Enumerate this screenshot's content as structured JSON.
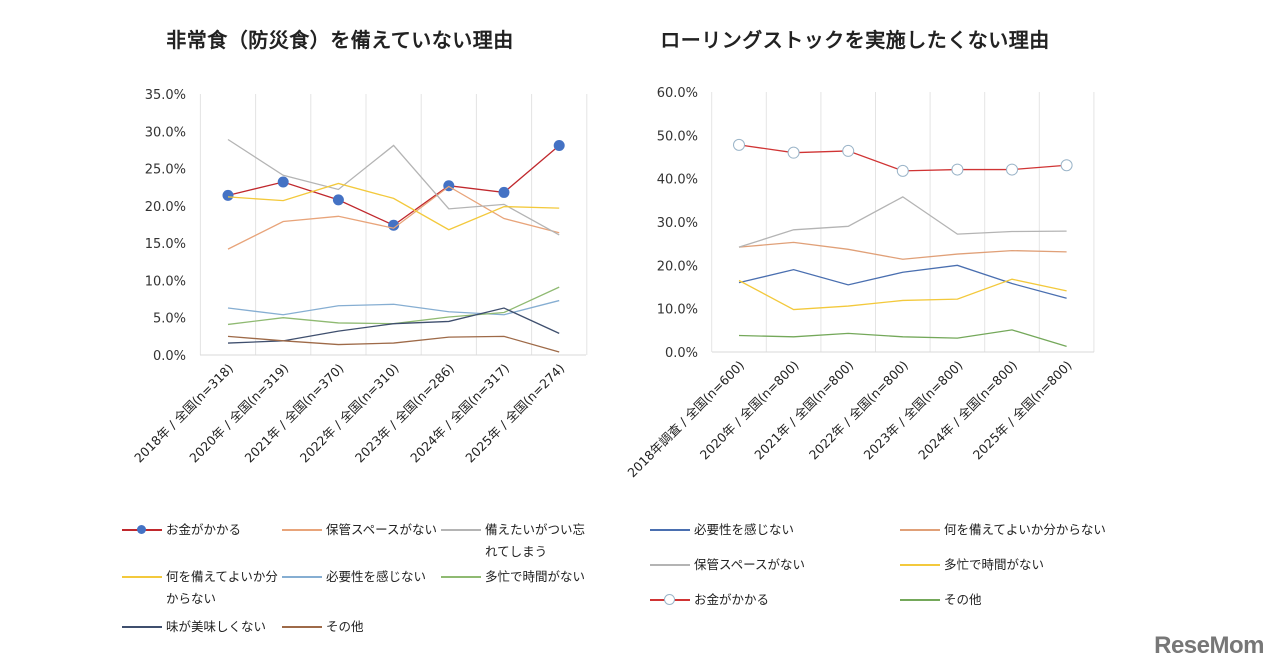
{
  "chart_data": [
    {
      "type": "line",
      "title": "非常食（防災食）を備えていない理由",
      "categories": [
        "2018年 / 全国(n=318)",
        "2020年 / 全国(n=319)",
        "2021年 / 全国(n=370)",
        "2022年 / 全国(n=310)",
        "2023年 / 全国(n=286)",
        "2024年 / 全国(n=317)",
        "2025年 / 全国(n=274)"
      ],
      "ylim": [
        0,
        35
      ],
      "yticks": [
        "0.0%",
        "5.0%",
        "10.0%",
        "15.0%",
        "20.0%",
        "25.0%",
        "30.0%",
        "35.0%"
      ],
      "grid": "vertical",
      "legend": "bottom",
      "series": [
        {
          "name": "お金がかかる",
          "color": "#c0282d",
          "marker": "filled-circle",
          "marker_color": "#4472c4",
          "values": [
            21.4,
            23.2,
            20.8,
            17.4,
            22.7,
            21.8,
            28.1
          ]
        },
        {
          "name": "保管スペースがない",
          "color": "#e8a47a",
          "values": [
            14.2,
            17.9,
            18.6,
            17.0,
            22.6,
            18.3,
            16.4
          ]
        },
        {
          "name": "備えたいがつい忘れてしまう",
          "color": "#b4b4b4",
          "values": [
            28.9,
            24.1,
            22.2,
            28.1,
            19.6,
            20.2,
            16.1
          ]
        },
        {
          "name": "何を備えてよいか分からない",
          "color": "#f3c93c",
          "values": [
            21.2,
            20.7,
            23.0,
            21.0,
            16.8,
            19.9,
            19.7
          ]
        },
        {
          "name": "必要性を感じない",
          "color": "#86aed2",
          "values": [
            6.3,
            5.4,
            6.6,
            6.8,
            5.8,
            5.4,
            7.3
          ]
        },
        {
          "name": "多忙で時間がない",
          "color": "#8fba72",
          "values": [
            4.1,
            5.0,
            4.3,
            4.2,
            5.1,
            5.7,
            9.1
          ]
        },
        {
          "name": "味が美味しくない",
          "color": "#3f4f6e",
          "values": [
            1.6,
            1.9,
            3.2,
            4.2,
            4.5,
            6.3,
            2.9
          ]
        },
        {
          "name": "その他",
          "color": "#9e6a48",
          "values": [
            2.5,
            1.9,
            1.4,
            1.6,
            2.4,
            2.5,
            0.4
          ]
        }
      ]
    },
    {
      "type": "line",
      "title": "ローリングストックを実施したくない理由",
      "categories": [
        "2018年調査 / 全国(n=600)",
        "2020年 / 全国(n=800)",
        "2021年 / 全国(n=800)",
        "2022年 / 全国(n=800)",
        "2023年 / 全国(n=800)",
        "2024年 / 全国(n=800)",
        "2025年 / 全国(n=800)"
      ],
      "ylim": [
        0,
        60
      ],
      "yticks": [
        "0.0%",
        "10.0%",
        "20.0%",
        "30.0%",
        "40.0%",
        "50.0%",
        "60.0%"
      ],
      "grid": "vertical",
      "legend": "bottom",
      "series": [
        {
          "name": "必要性を感じない",
          "color": "#4a6fb0",
          "values": [
            16.0,
            19.0,
            15.5,
            18.4,
            20.0,
            15.8,
            12.4
          ]
        },
        {
          "name": "何を備えてよいか分からない",
          "color": "#e0a078",
          "values": [
            24.2,
            25.3,
            23.7,
            21.4,
            22.6,
            23.4,
            23.1
          ]
        },
        {
          "name": "保管スペースがない",
          "color": "#b4b4b4",
          "values": [
            24.2,
            28.2,
            29.0,
            35.8,
            27.2,
            27.8,
            27.9
          ]
        },
        {
          "name": "多忙で時間がない",
          "color": "#f3c93c",
          "values": [
            16.5,
            9.8,
            10.6,
            11.9,
            12.2,
            16.8,
            14.1
          ]
        },
        {
          "name": "お金がかかる",
          "color": "#d03434",
          "marker": "open-circle",
          "marker_color": "#9ab4c8",
          "values": [
            47.8,
            46.0,
            46.4,
            41.8,
            42.1,
            42.1,
            43.1
          ]
        },
        {
          "name": "その他",
          "color": "#74a85a",
          "values": [
            3.8,
            3.5,
            4.3,
            3.5,
            3.2,
            5.1,
            1.3
          ]
        }
      ]
    }
  ],
  "logo": "ReseMom"
}
